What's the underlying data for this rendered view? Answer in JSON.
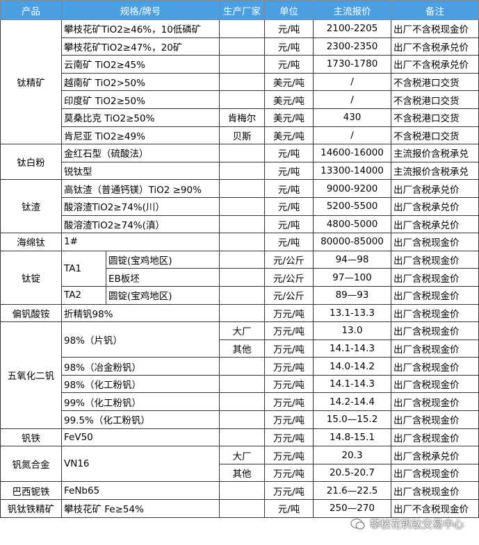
{
  "header": [
    "产品",
    "规格/牌号",
    "生产厂家",
    "单位",
    "主流报价",
    "备注"
  ],
  "groups": [
    {
      "product": "钛精矿",
      "rows": [
        {
          "spec": "攀枝花矿TiO2≥46%，10低磷矿",
          "unit": "元/吨",
          "price": "2100-2205",
          "note": "出厂不含税现金价"
        },
        {
          "spec": "攀枝花矿TiO2≥47%，20矿",
          "unit": "元/吨",
          "price": "2300-2350",
          "note": "出厂不含税承兑价"
        },
        {
          "spec": "云南矿 TiO2≥45%",
          "unit": "元/吨",
          "price": "1730-1780",
          "note": "出厂不含税承兑价"
        },
        {
          "spec": "越南矿 TiO2>50%",
          "unit": "美元/吨",
          "price": "/",
          "note": "不含税港口交货"
        },
        {
          "spec": "印度矿 TiO2≥50%",
          "unit": "美元/吨",
          "price": "/",
          "note": "不含税港口交货"
        },
        {
          "spec": "莫桑比克 TiO2≥50%",
          "maker": "肯梅尔",
          "unit": "美元/吨",
          "price": "430",
          "note": "不含税港口交货"
        },
        {
          "spec": "肯尼亚 TiO2≥49%",
          "maker": "贝斯",
          "unit": "美元/吨",
          "price": "/",
          "note": "不含税港口交货"
        }
      ]
    },
    {
      "product": "钛白粉",
      "rows": [
        {
          "spec": "金红石型（硫酸法）",
          "unit": "元/吨",
          "price": "14600-16000",
          "note": "主流报价含税承兑"
        },
        {
          "spec": "锐钛型",
          "unit": "元/吨",
          "price": "13300-14000",
          "note": "主流报价含税承兑"
        }
      ]
    },
    {
      "product": "钛渣",
      "rows": [
        {
          "spec": "高钛渣（普通钙镁）TiO2 ≥90%",
          "unit": "元/吨",
          "price": "9000-9200",
          "note": "出厂含税承兑价"
        },
        {
          "spec": "酸溶渣TiO2≥74%(川）",
          "unit": "元/吨",
          "price": "5200-5500",
          "note": "出厂含税承兑价"
        },
        {
          "spec": "酸溶渣TiO2≥74%(滇）",
          "unit": "元/吨",
          "price": "4800-5000",
          "note": "出厂含税承兑价"
        }
      ]
    },
    {
      "product": "海绵钛",
      "rows": [
        {
          "spec": "1#",
          "unit": "元/吨",
          "price": "80000-85000",
          "note": "出厂含税现金价"
        }
      ]
    },
    {
      "product": "钛锭",
      "rows": [
        {
          "grade": "TA1",
          "form": "圆锭(宝鸡地区)",
          "unit": "元/公斤",
          "price": "94—98",
          "note": "出厂含税现金价"
        },
        {
          "form": "EB板坯",
          "unit": "元/公斤",
          "price": "97—100",
          "note": "出厂含税现金价"
        },
        {
          "grade": "TA2",
          "form": "圆锭(宝鸡地区)",
          "unit": "元/公斤",
          "price": "89—93",
          "note": "出厂含税现金价"
        }
      ]
    },
    {
      "product": "偏钒酸铵",
      "rows": [
        {
          "spec": "折精钒98%",
          "unit": "万元/吨",
          "price": "13.1-13.3",
          "note": "出厂含税现金价"
        }
      ]
    },
    {
      "product": "五氧化二钒",
      "rows": [
        {
          "spec": "98%（片钒）",
          "maker": "大厂",
          "unit": "万元/吨",
          "price": "13.0",
          "note": "出厂含税现金价"
        },
        {
          "maker": "其他",
          "unit": "万元/吨",
          "price": "14.1-14.3",
          "note": "出厂含税现金价"
        },
        {
          "spec": "98%（冶金粉钒）",
          "unit": "万元/吨",
          "price": "14.0-14.2",
          "note": "出厂含税现金价"
        },
        {
          "spec": "98%（化工粉钒）",
          "unit": "万元/吨",
          "price": "14.1-14.3",
          "note": "出厂含税现金价"
        },
        {
          "spec": "99%（化工粉钒）",
          "unit": "万元/吨",
          "price": "14.2-14.4",
          "note": "出厂含税现金价"
        },
        {
          "spec": "99.5%（化工粉钒）",
          "unit": "万元/吨",
          "price": "15.0—15.2",
          "note": "出厂含税现金价"
        }
      ]
    },
    {
      "product": "钒铁",
      "rows": [
        {
          "spec": "FeV50",
          "unit": "万元/吨",
          "price": "14.8-15.1",
          "note": "出厂含税现金价"
        }
      ]
    },
    {
      "product": "钒氮合金",
      "rows": [
        {
          "spec": "VN16",
          "maker": "大厂",
          "unit": "万元/吨",
          "price": "20.3",
          "note": "出厂含税承兑价"
        },
        {
          "maker": "其他",
          "unit": "万元/吨",
          "price": "20.5-20.7",
          "note": "出厂含税现金价"
        }
      ]
    },
    {
      "product": "巴西铌铁",
      "rows": [
        {
          "spec": "FeNb65",
          "unit": "万元/吨",
          "price": "21.6—22.5",
          "note": "出厂含税现金价"
        }
      ]
    },
    {
      "product": "钒钛铁精矿",
      "rows": [
        {
          "spec": "攀枝花矿 Fe≥54%",
          "unit": "元/吨",
          "price": "250—270",
          "note": "出厂不含税现金价"
        }
      ]
    }
  ],
  "watermark": "攀枝花钒钛交易中心"
}
